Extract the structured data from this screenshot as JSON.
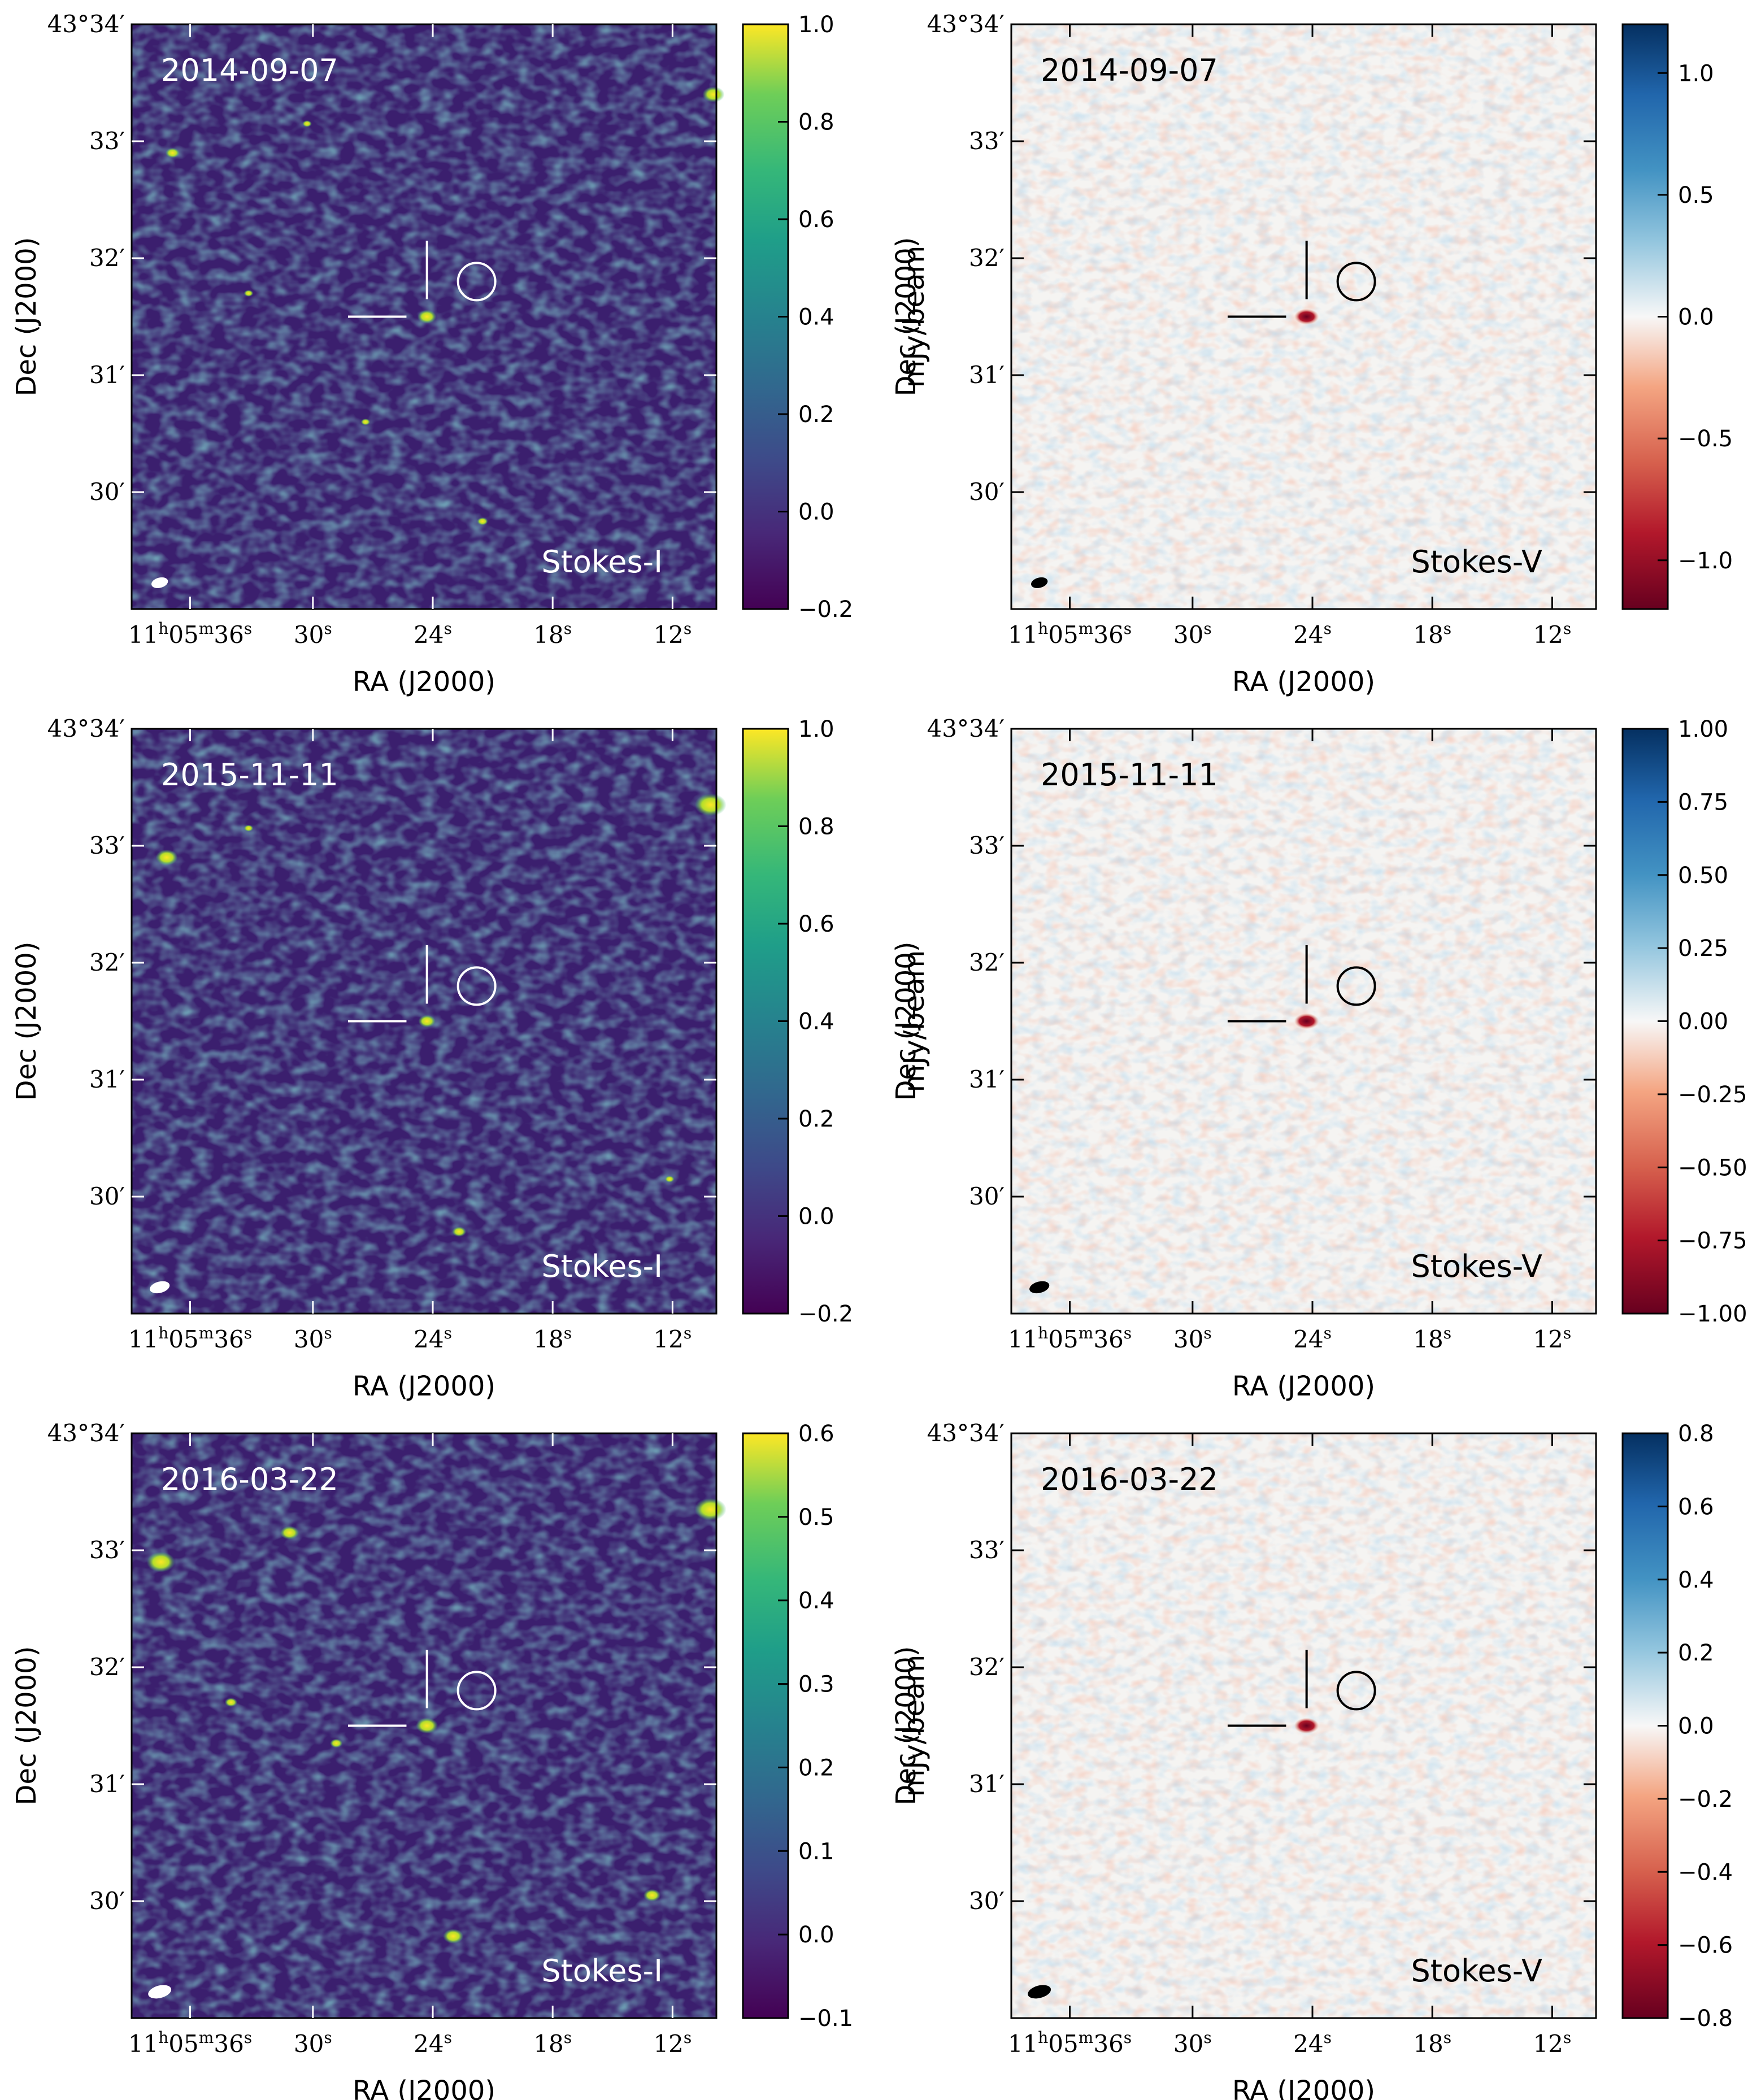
{
  "figure": {
    "stokes_i_label": "Stokes-I",
    "stokes_v_label": "Stokes-V",
    "ra_axis_label": "RA (J2000)",
    "dec_axis_label": "Dec (J2000)",
    "colorbar_label": "mJy/beam",
    "ra_ticks": [
      {
        "h": "11",
        "hs": "h",
        "m": "05",
        "ms": "m",
        "s": "36",
        "ss": "s"
      },
      {
        "s": "30",
        "ss": "s"
      },
      {
        "s": "24",
        "ss": "s"
      },
      {
        "s": "18",
        "ss": "s"
      },
      {
        "s": "12",
        "ss": "s"
      }
    ],
    "dec_ticks": [
      "43°34′",
      "33′",
      "32′",
      "31′",
      "30′"
    ]
  },
  "panels": [
    {
      "epoch": "2014-09-07",
      "stokes": "I",
      "cbar_min": -0.2,
      "cbar_max": 1.0,
      "cbar_ticks": [
        "1.0",
        "0.8",
        "0.6",
        "0.4",
        "0.2",
        "0.0",
        "−0.2"
      ]
    },
    {
      "epoch": "2014-09-07",
      "stokes": "V",
      "cbar_min": -1.2,
      "cbar_max": 1.2,
      "cbar_ticks": [
        "1.0",
        "0.5",
        "0.0",
        "−0.5",
        "−1.0"
      ]
    },
    {
      "epoch": "2015-11-11",
      "stokes": "I",
      "cbar_min": -0.2,
      "cbar_max": 1.0,
      "cbar_ticks": [
        "1.0",
        "0.8",
        "0.6",
        "0.4",
        "0.2",
        "0.0",
        "−0.2"
      ]
    },
    {
      "epoch": "2015-11-11",
      "stokes": "V",
      "cbar_min": -1.0,
      "cbar_max": 1.0,
      "cbar_ticks": [
        "1.00",
        "0.75",
        "0.50",
        "0.25",
        "0.00",
        "−0.25",
        "−0.50",
        "−0.75",
        "−1.00"
      ]
    },
    {
      "epoch": "2016-03-22",
      "stokes": "I",
      "cbar_min": -0.1,
      "cbar_max": 0.6,
      "cbar_ticks": [
        "0.6",
        "0.5",
        "0.4",
        "0.3",
        "0.2",
        "0.1",
        "0.0",
        "−0.1"
      ]
    },
    {
      "epoch": "2016-03-22",
      "stokes": "V",
      "cbar_min": -0.8,
      "cbar_max": 0.8,
      "cbar_ticks": [
        "0.8",
        "0.6",
        "0.4",
        "0.2",
        "0.0",
        "−0.2",
        "−0.4",
        "−0.6",
        "−0.8"
      ]
    }
  ],
  "colors": {
    "viridis_low": "#440154",
    "viridis_mid": "#21918c",
    "viridis_high": "#fde725",
    "rdbu_low": "#67001f",
    "rdbu_mid": "#f7f7f7",
    "rdbu_high": "#053061"
  }
}
